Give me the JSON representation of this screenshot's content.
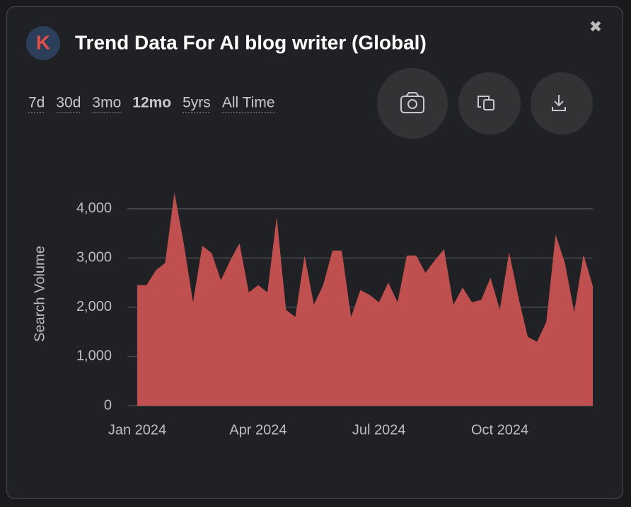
{
  "header": {
    "logo": "K",
    "title": "Trend Data For AI blog writer (Global)",
    "close": "✖"
  },
  "tabs": [
    "7d",
    "30d",
    "3mo",
    "12mo",
    "5yrs",
    "All Time"
  ],
  "active_tab": "12mo",
  "chart_data": {
    "type": "area",
    "y_label": "Search Volume",
    "color": "#c0504f",
    "grid": true,
    "categories": [
      "Jan 2024",
      null,
      null,
      null,
      null,
      null,
      null,
      null,
      null,
      null,
      null,
      null,
      null,
      "Apr 2024",
      null,
      null,
      null,
      null,
      null,
      null,
      null,
      null,
      null,
      null,
      null,
      null,
      "Jul 2024",
      null,
      null,
      null,
      null,
      null,
      null,
      null,
      null,
      null,
      null,
      null,
      null,
      "Oct 2024",
      null,
      null,
      null,
      null,
      null,
      null,
      null,
      null,
      null,
      null
    ],
    "values": [
      2450,
      2450,
      2750,
      2900,
      4330,
      3300,
      2100,
      3250,
      3100,
      2550,
      2950,
      3300,
      2300,
      2450,
      2300,
      3830,
      1950,
      1800,
      3050,
      2050,
      2450,
      3150,
      3150,
      1800,
      2350,
      2250,
      2100,
      2500,
      2100,
      3050,
      3050,
      2700,
      2950,
      3180,
      2050,
      2400,
      2100,
      2150,
      2600,
      1950,
      3120,
      2200,
      1400,
      1300,
      1700,
      3480,
      2900,
      1900,
      3070,
      2430
    ],
    "ylim": [
      0,
      4500
    ],
    "yticks": [
      0,
      {
        "value": 1000,
        "label": "1,000"
      },
      {
        "value": 2000,
        "label": "2,000"
      },
      {
        "value": 3000,
        "label": "3,000"
      },
      {
        "value": 4000,
        "label": "4,000"
      }
    ]
  }
}
